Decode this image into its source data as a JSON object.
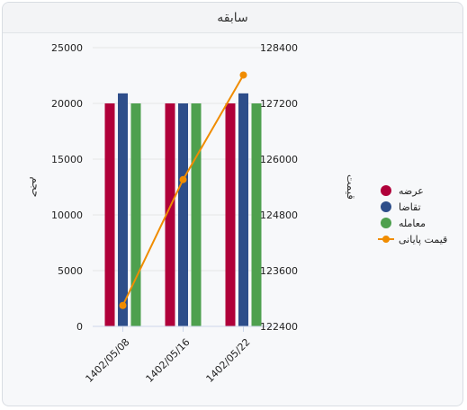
{
  "panel": {
    "title": "سابقه"
  },
  "chart_data": {
    "type": "bar",
    "categories": [
      "1402/05/08",
      "1402/05/16",
      "1402/05/22"
    ],
    "series": [
      {
        "name": "عرضه",
        "kind": "bar",
        "axis": "left",
        "color": "#b0003a",
        "values": [
          20000,
          20000,
          20000
        ]
      },
      {
        "name": "تقاضا",
        "kind": "bar",
        "axis": "left",
        "color": "#2e4e8a",
        "values": [
          20900,
          20000,
          20900
        ]
      },
      {
        "name": "معامله",
        "kind": "bar",
        "axis": "left",
        "color": "#4ea04e",
        "values": [
          20000,
          20000,
          20000
        ]
      },
      {
        "name": "قیمت پایانی",
        "kind": "line",
        "axis": "right",
        "color": "#f08c00",
        "values": [
          122850,
          125560,
          127810
        ]
      }
    ],
    "yleft": {
      "label": "حجم",
      "ticks": [
        "0",
        "5000",
        "10000",
        "15000",
        "20000",
        "25000"
      ],
      "min": 0,
      "max": 25000
    },
    "yright": {
      "label": "قیمت",
      "ticks": [
        "122400",
        "123600",
        "124800",
        "126000",
        "127200",
        "128400"
      ],
      "min": 122400,
      "max": 128400
    },
    "legend": "right",
    "grid": true
  }
}
